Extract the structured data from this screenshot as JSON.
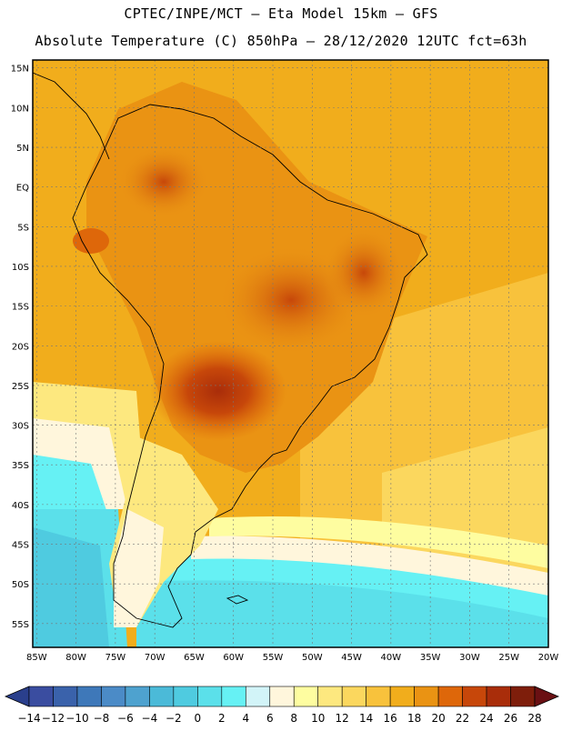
{
  "header": {
    "line1": "CPTEC/INPE/MCT –  Eta Model 15km – GFS",
    "line2": "Absolute Temperature (C) 850hPa – 28/12/2020 12UTC fct=63h"
  },
  "map": {
    "lat_labels": [
      "15N",
      "10N",
      "5N",
      "EQ",
      "5S",
      "10S",
      "15S",
      "20S",
      "25S",
      "30S",
      "35S",
      "40S",
      "45S",
      "50S",
      "55S"
    ],
    "lon_labels": [
      "85W",
      "80W",
      "75W",
      "70W",
      "65W",
      "60W",
      "55W",
      "50W",
      "45W",
      "40W",
      "35W",
      "30W",
      "25W",
      "20W"
    ],
    "lat_range": [
      -58,
      16
    ],
    "lon_range": [
      -85.5,
      -20
    ]
  },
  "colorbar": {
    "labels": [
      "-14",
      "-12",
      "-10",
      "-8",
      "-6",
      "-4",
      "-2",
      "0",
      "2",
      "4",
      "6",
      "8",
      "10",
      "12",
      "14",
      "16",
      "18",
      "20",
      "22",
      "24",
      "26",
      "28"
    ],
    "colors": [
      "#3a4da0",
      "#3a62ab",
      "#3e78b9",
      "#4b8bc7",
      "#4ea2cf",
      "#4bbad8",
      "#4fcbe0",
      "#5be0ea",
      "#66f1f4",
      "#d2f4f8",
      "#fff6dc",
      "#fefda0",
      "#fde87f",
      "#fbd75e",
      "#f8c23c",
      "#f1ad1c",
      "#ea9313",
      "#de670a",
      "#c7470a",
      "#a92d0a",
      "#7e1e0b"
    ],
    "left_arrow_color": "#2a3f8c",
    "right_arrow_color": "#6a1013"
  }
}
